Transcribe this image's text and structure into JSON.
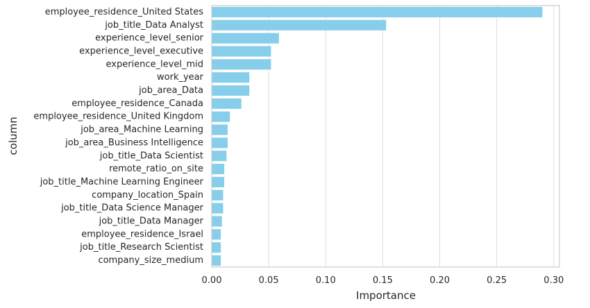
{
  "chart_data": {
    "type": "bar",
    "orientation": "horizontal",
    "title": "",
    "xlabel": "Importance",
    "ylabel": "column",
    "xlim": [
      0,
      0.305
    ],
    "xticks": [
      0.0,
      0.05,
      0.1,
      0.15,
      0.2,
      0.25,
      0.3
    ],
    "xtick_labels": [
      "0.00",
      "0.05",
      "0.10",
      "0.15",
      "0.20",
      "0.25",
      "0.30"
    ],
    "grid": "vertical",
    "bar_color": "#87CEEB",
    "categories": [
      "employee_residence_United States",
      "job_title_Data Analyst",
      "experience_level_senior",
      "experience_level_executive",
      "experience_level_mid",
      "work_year",
      "job_area_Data",
      "employee_residence_Canada",
      "employee_residence_United Kingdom",
      "job_area_Machine Learning",
      "job_area_Business Intelligence",
      "job_title_Data Scientist",
      "remote_ratio_on_site",
      "job_title_Machine Learning Engineer",
      "company_location_Spain",
      "job_title_Data Science Manager",
      "job_title_Data Manager",
      "employee_residence_Israel",
      "job_title_Research Scientist",
      "company_size_medium"
    ],
    "values": [
      0.29,
      0.153,
      0.059,
      0.052,
      0.052,
      0.033,
      0.033,
      0.026,
      0.016,
      0.014,
      0.014,
      0.013,
      0.011,
      0.011,
      0.01,
      0.01,
      0.009,
      0.008,
      0.008,
      0.008
    ]
  }
}
